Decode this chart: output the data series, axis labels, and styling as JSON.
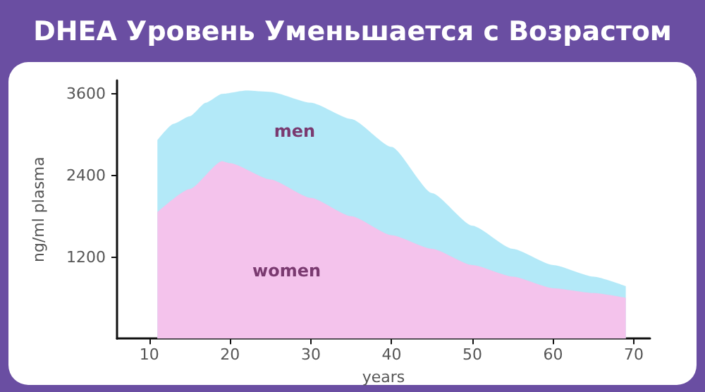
{
  "chart_data": {
    "type": "area",
    "title": "DHEA Уровень Уменьшается с Возрастом",
    "xlabel": "years",
    "ylabel": "ng/ml plasma",
    "xlim": [
      6,
      72
    ],
    "xticks": [
      10,
      20,
      30,
      40,
      50,
      60,
      70
    ],
    "ylim": [
      0,
      3800
    ],
    "yticks": [
      1200,
      2400,
      3600
    ],
    "grid": false,
    "legend": false,
    "series": [
      {
        "name": "men",
        "color": "#b3e9f8",
        "x": [
          11,
          13,
          15,
          17,
          19,
          22,
          25,
          30,
          35,
          40,
          45,
          50,
          55,
          60,
          65,
          69
        ],
        "values": [
          2920,
          3160,
          3270,
          3470,
          3600,
          3650,
          3630,
          3470,
          3230,
          2820,
          2140,
          1660,
          1320,
          1080,
          910,
          770
        ]
      },
      {
        "name": "women",
        "color": "#f4c3ec",
        "x": [
          11,
          15,
          19,
          20,
          25,
          30,
          35,
          40,
          45,
          50,
          55,
          60,
          65,
          69
        ],
        "values": [
          1860,
          2200,
          2610,
          2580,
          2340,
          2070,
          1800,
          1520,
          1320,
          1080,
          910,
          740,
          670,
          600
        ]
      }
    ]
  }
}
